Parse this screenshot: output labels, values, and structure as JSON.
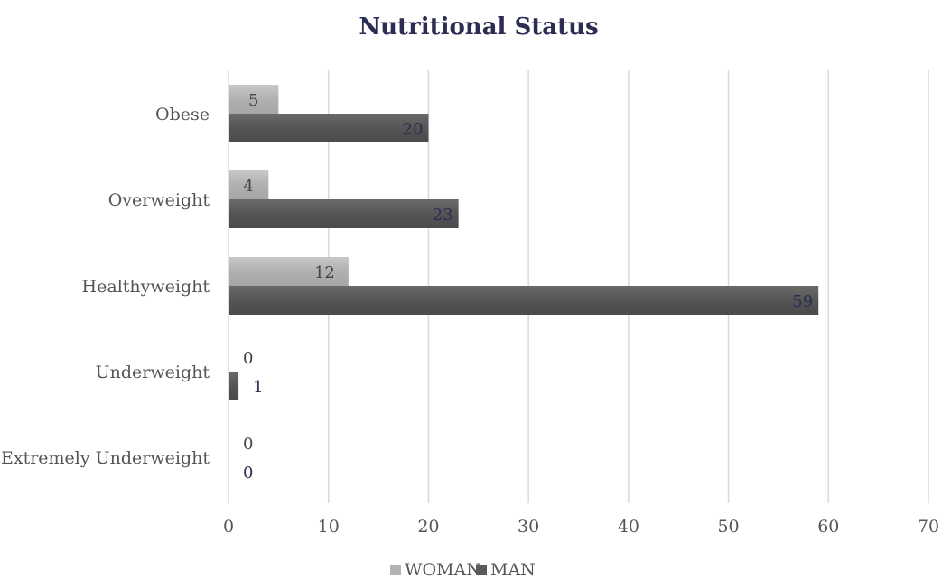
{
  "chart_data": {
    "type": "bar",
    "orientation": "horizontal",
    "title": "Nutritional Status",
    "categories": [
      "Obese",
      "Overweight",
      "Healthyweight",
      "Underweight",
      "Extremely Underweight"
    ],
    "series": [
      {
        "name": "WOMAN",
        "values": [
          5,
          4,
          12,
          0,
          0
        ],
        "color": "#b3b3b3"
      },
      {
        "name": "MAN",
        "values": [
          20,
          23,
          59,
          1,
          0
        ],
        "color": "#5a5a5a"
      }
    ],
    "xlim": [
      0,
      70
    ],
    "xticks": [
      0,
      10,
      20,
      30,
      40,
      50,
      60,
      70
    ],
    "grid": true,
    "grid_color": "#d9d7ec",
    "legend_position": "bottom"
  }
}
